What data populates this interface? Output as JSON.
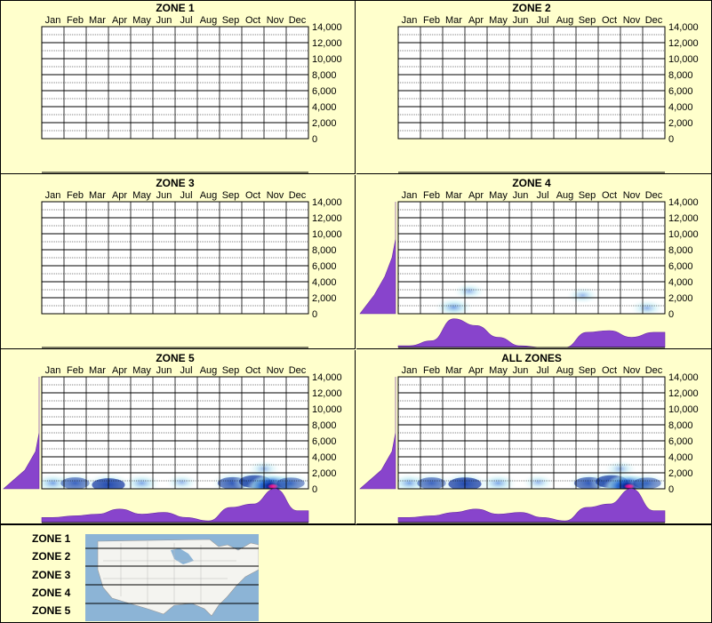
{
  "months": [
    "Jan",
    "Feb",
    "Mar",
    "Apr",
    "May",
    "Jun",
    "Jul",
    "Aug",
    "Sep",
    "Oct",
    "Nov",
    "Dec"
  ],
  "yticks": [
    "14,000",
    "12,000",
    "10,000",
    "8,000",
    "6,000",
    "4,000",
    "2,000",
    "0"
  ],
  "legend": [
    "ZONE 1",
    "ZONE 2",
    "ZONE 3",
    "ZONE 4",
    "ZONE 5"
  ],
  "colors": {
    "background": "#ffffcc",
    "density": "#8844cc",
    "heat_low": "#a8e4f0",
    "heat_mid": "#2a6fd6",
    "heat_high": "#0a2a9a",
    "heat_peak": "#ff1493"
  },
  "chart_data": [
    {
      "type": "heatmap",
      "title": "ZONE 1",
      "x": [
        "Jan",
        "Feb",
        "Mar",
        "Apr",
        "May",
        "Jun",
        "Jul",
        "Aug",
        "Sep",
        "Oct",
        "Nov",
        "Dec"
      ],
      "ylim": [
        0,
        14000
      ],
      "monthly_density": [
        0,
        0,
        0,
        0,
        0,
        0,
        0,
        0,
        0,
        0,
        0,
        0
      ],
      "elevation_density": [
        0,
        0,
        0,
        0,
        0,
        0,
        0
      ],
      "hotspots": []
    },
    {
      "type": "heatmap",
      "title": "ZONE 2",
      "x": [
        "Jan",
        "Feb",
        "Mar",
        "Apr",
        "May",
        "Jun",
        "Jul",
        "Aug",
        "Sep",
        "Oct",
        "Nov",
        "Dec"
      ],
      "ylim": [
        0,
        14000
      ],
      "monthly_density": [
        0,
        0,
        0,
        0,
        0,
        0,
        0,
        0,
        0,
        0,
        0,
        0
      ],
      "elevation_density": [
        0,
        0,
        0,
        0,
        0,
        0,
        0
      ],
      "hotspots": []
    },
    {
      "type": "heatmap",
      "title": "ZONE 3",
      "x": [
        "Jan",
        "Feb",
        "Mar",
        "Apr",
        "May",
        "Jun",
        "Jul",
        "Aug",
        "Sep",
        "Oct",
        "Nov",
        "Dec"
      ],
      "ylim": [
        0,
        14000
      ],
      "monthly_density": [
        0,
        0,
        0,
        0,
        0,
        0,
        0,
        0,
        0,
        0,
        0,
        0
      ],
      "elevation_density": [
        0,
        0,
        0,
        0,
        0,
        0,
        0
      ],
      "hotspots": []
    },
    {
      "type": "heatmap",
      "title": "ZONE 4",
      "x": [
        "Jan",
        "Feb",
        "Mar",
        "Apr",
        "May",
        "Jun",
        "Jul",
        "Aug",
        "Sep",
        "Oct",
        "Nov",
        "Dec"
      ],
      "ylim": [
        0,
        14000
      ],
      "monthly_density": [
        0.05,
        0.2,
        0.85,
        0.65,
        0.3,
        0.05,
        0,
        0,
        0.45,
        0.5,
        0.3,
        0.45
      ],
      "elevation_density": [
        1.0,
        0.6,
        0.3,
        0.1,
        0,
        0,
        0
      ],
      "hotspots": [
        {
          "month": 2.5,
          "elev": 800,
          "intensity": 0.55
        },
        {
          "month": 3.2,
          "elev": 2800,
          "intensity": 0.3
        },
        {
          "month": 8.3,
          "elev": 2300,
          "intensity": 0.3
        },
        {
          "month": 11.2,
          "elev": 700,
          "intensity": 0.35
        }
      ]
    },
    {
      "type": "heatmap",
      "title": "ZONE 5",
      "x": [
        "Jan",
        "Feb",
        "Mar",
        "Apr",
        "May",
        "Jun",
        "Jul",
        "Aug",
        "Sep",
        "Oct",
        "Nov",
        "Dec"
      ],
      "ylim": [
        0,
        14000
      ],
      "monthly_density": [
        0.15,
        0.2,
        0.25,
        0.4,
        0.25,
        0.3,
        0.15,
        0.05,
        0.45,
        0.55,
        1.0,
        0.35
      ],
      "elevation_density": [
        1.0,
        0.4,
        0.1,
        0,
        0,
        0,
        0
      ],
      "hotspots": [
        {
          "month": 0.5,
          "elev": 700,
          "intensity": 0.55
        },
        {
          "month": 1.5,
          "elev": 700,
          "intensity": 0.65
        },
        {
          "month": 3.0,
          "elev": 500,
          "intensity": 0.9
        },
        {
          "month": 4.5,
          "elev": 700,
          "intensity": 0.5
        },
        {
          "month": 6.3,
          "elev": 800,
          "intensity": 0.3
        },
        {
          "month": 8.6,
          "elev": 700,
          "intensity": 0.75
        },
        {
          "month": 9.6,
          "elev": 900,
          "intensity": 0.85
        },
        {
          "month": 10.4,
          "elev": 300,
          "intensity": 1.0
        },
        {
          "month": 11.2,
          "elev": 700,
          "intensity": 0.6
        },
        {
          "month": 10.0,
          "elev": 2500,
          "intensity": 0.3
        }
      ]
    },
    {
      "type": "heatmap",
      "title": "ALL ZONES",
      "x": [
        "Jan",
        "Feb",
        "Mar",
        "Apr",
        "May",
        "Jun",
        "Jul",
        "Aug",
        "Sep",
        "Oct",
        "Nov",
        "Dec"
      ],
      "ylim": [
        0,
        14000
      ],
      "monthly_density": [
        0.15,
        0.2,
        0.3,
        0.4,
        0.25,
        0.3,
        0.15,
        0.05,
        0.45,
        0.55,
        1.0,
        0.35
      ],
      "elevation_density": [
        1.0,
        0.4,
        0.1,
        0,
        0,
        0,
        0
      ],
      "hotspots": [
        {
          "month": 0.5,
          "elev": 700,
          "intensity": 0.55
        },
        {
          "month": 1.5,
          "elev": 700,
          "intensity": 0.65
        },
        {
          "month": 3.0,
          "elev": 600,
          "intensity": 0.9
        },
        {
          "month": 4.5,
          "elev": 700,
          "intensity": 0.5
        },
        {
          "month": 6.3,
          "elev": 800,
          "intensity": 0.3
        },
        {
          "month": 8.6,
          "elev": 700,
          "intensity": 0.75
        },
        {
          "month": 9.6,
          "elev": 900,
          "intensity": 0.85
        },
        {
          "month": 10.4,
          "elev": 300,
          "intensity": 1.0
        },
        {
          "month": 11.2,
          "elev": 700,
          "intensity": 0.6
        },
        {
          "month": 10.0,
          "elev": 2500,
          "intensity": 0.3
        }
      ]
    }
  ]
}
